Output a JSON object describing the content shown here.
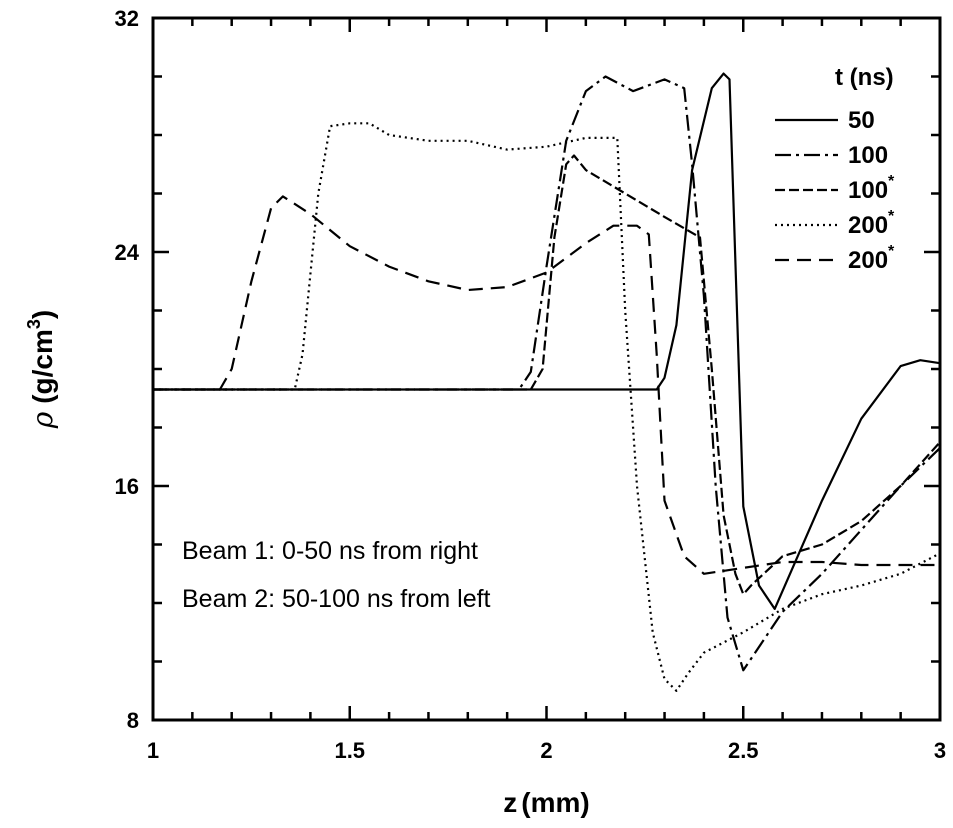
{
  "chart_data": {
    "type": "line",
    "xlabel_var": "z",
    "xlabel_unit": "(mm)",
    "ylabel_symbol": "ρ",
    "ylabel_unit_pre": "(g/cm",
    "ylabel_unit_sup": "3",
    "ylabel_unit_post": ")",
    "xlim": [
      1,
      3
    ],
    "ylim": [
      8,
      32
    ],
    "x_ticks": [
      1,
      1.5,
      2,
      2.5,
      3
    ],
    "x_tick_labels": [
      "1",
      "1.5",
      "2",
      "2.5",
      "3"
    ],
    "y_ticks": [
      8,
      16,
      24,
      32
    ],
    "y_tick_labels": [
      "8",
      "16",
      "24",
      "32"
    ],
    "grid": false,
    "legend": {
      "title": "t (ns)",
      "placement": "top-right"
    },
    "annotations": [
      "Beam 1: 0-50 ns from right",
      "Beam 2: 50-100 ns from left"
    ],
    "series": [
      {
        "name": "50",
        "superscript": "",
        "style": "solid",
        "x": [
          1.0,
          2.28,
          2.3,
          2.33,
          2.37,
          2.42,
          2.45,
          2.465,
          2.5,
          2.54,
          2.58,
          2.7,
          2.8,
          2.9,
          2.95,
          3.0
        ],
        "y": [
          19.3,
          19.3,
          19.7,
          21.5,
          26.8,
          29.6,
          30.1,
          29.9,
          15.3,
          12.6,
          11.8,
          15.5,
          18.3,
          20.1,
          20.3,
          20.2
        ]
      },
      {
        "name": "100",
        "superscript": "",
        "style": "dashdot",
        "x": [
          1.0,
          1.93,
          1.96,
          2.0,
          2.05,
          2.1,
          2.15,
          2.22,
          2.3,
          2.35,
          2.37,
          2.4,
          2.43,
          2.46,
          2.5,
          2.6,
          2.7,
          2.8,
          2.9,
          3.0
        ],
        "y": [
          19.3,
          19.3,
          19.9,
          23.5,
          27.8,
          29.5,
          30.0,
          29.5,
          29.9,
          29.6,
          27.0,
          22.5,
          16.0,
          11.5,
          9.7,
          11.7,
          13.0,
          14.5,
          16.0,
          17.3
        ]
      },
      {
        "name": "100",
        "superscript": "*",
        "style": "dashed",
        "x": [
          1.0,
          1.96,
          1.99,
          2.02,
          2.05,
          2.07,
          2.1,
          2.2,
          2.3,
          2.39,
          2.42,
          2.45,
          2.48,
          2.5,
          2.52,
          2.6,
          2.7,
          2.8,
          2.9,
          3.0
        ],
        "y": [
          19.3,
          19.3,
          20.0,
          24.5,
          27.0,
          27.3,
          26.8,
          26.0,
          25.2,
          24.5,
          20.0,
          15.0,
          13.0,
          12.3,
          12.6,
          13.6,
          14.0,
          14.8,
          16.0,
          17.5
        ]
      },
      {
        "name": "200",
        "superscript": "*",
        "style": "dotted",
        "x": [
          1.0,
          1.36,
          1.38,
          1.42,
          1.45,
          1.5,
          1.55,
          1.6,
          1.7,
          1.8,
          1.9,
          2.0,
          2.1,
          2.18,
          2.2,
          2.23,
          2.27,
          2.3,
          2.33,
          2.36,
          2.4,
          2.5,
          2.6,
          2.7,
          2.8,
          2.9,
          3.0
        ],
        "y": [
          19.3,
          19.3,
          20.5,
          26.0,
          28.3,
          28.4,
          28.4,
          28.0,
          27.8,
          27.8,
          27.5,
          27.6,
          27.9,
          27.9,
          22.0,
          16.0,
          11.0,
          9.4,
          9.0,
          9.6,
          10.3,
          11.0,
          11.8,
          12.3,
          12.6,
          13.0,
          13.7
        ]
      },
      {
        "name": "200",
        "superscript": "*",
        "style": "longdash",
        "x": [
          1.0,
          1.17,
          1.2,
          1.25,
          1.3,
          1.33,
          1.4,
          1.5,
          1.6,
          1.7,
          1.8,
          1.9,
          2.0,
          2.1,
          2.17,
          2.23,
          2.26,
          2.28,
          2.3,
          2.35,
          2.4,
          2.5,
          2.6,
          2.7,
          2.8,
          2.9,
          3.0
        ],
        "y": [
          19.3,
          19.3,
          20.0,
          23.0,
          25.5,
          25.9,
          25.3,
          24.2,
          23.5,
          23.0,
          22.7,
          22.8,
          23.3,
          24.3,
          24.9,
          24.9,
          24.6,
          20.5,
          15.5,
          13.6,
          13.0,
          13.2,
          13.4,
          13.4,
          13.3,
          13.3,
          13.3
        ]
      }
    ]
  }
}
